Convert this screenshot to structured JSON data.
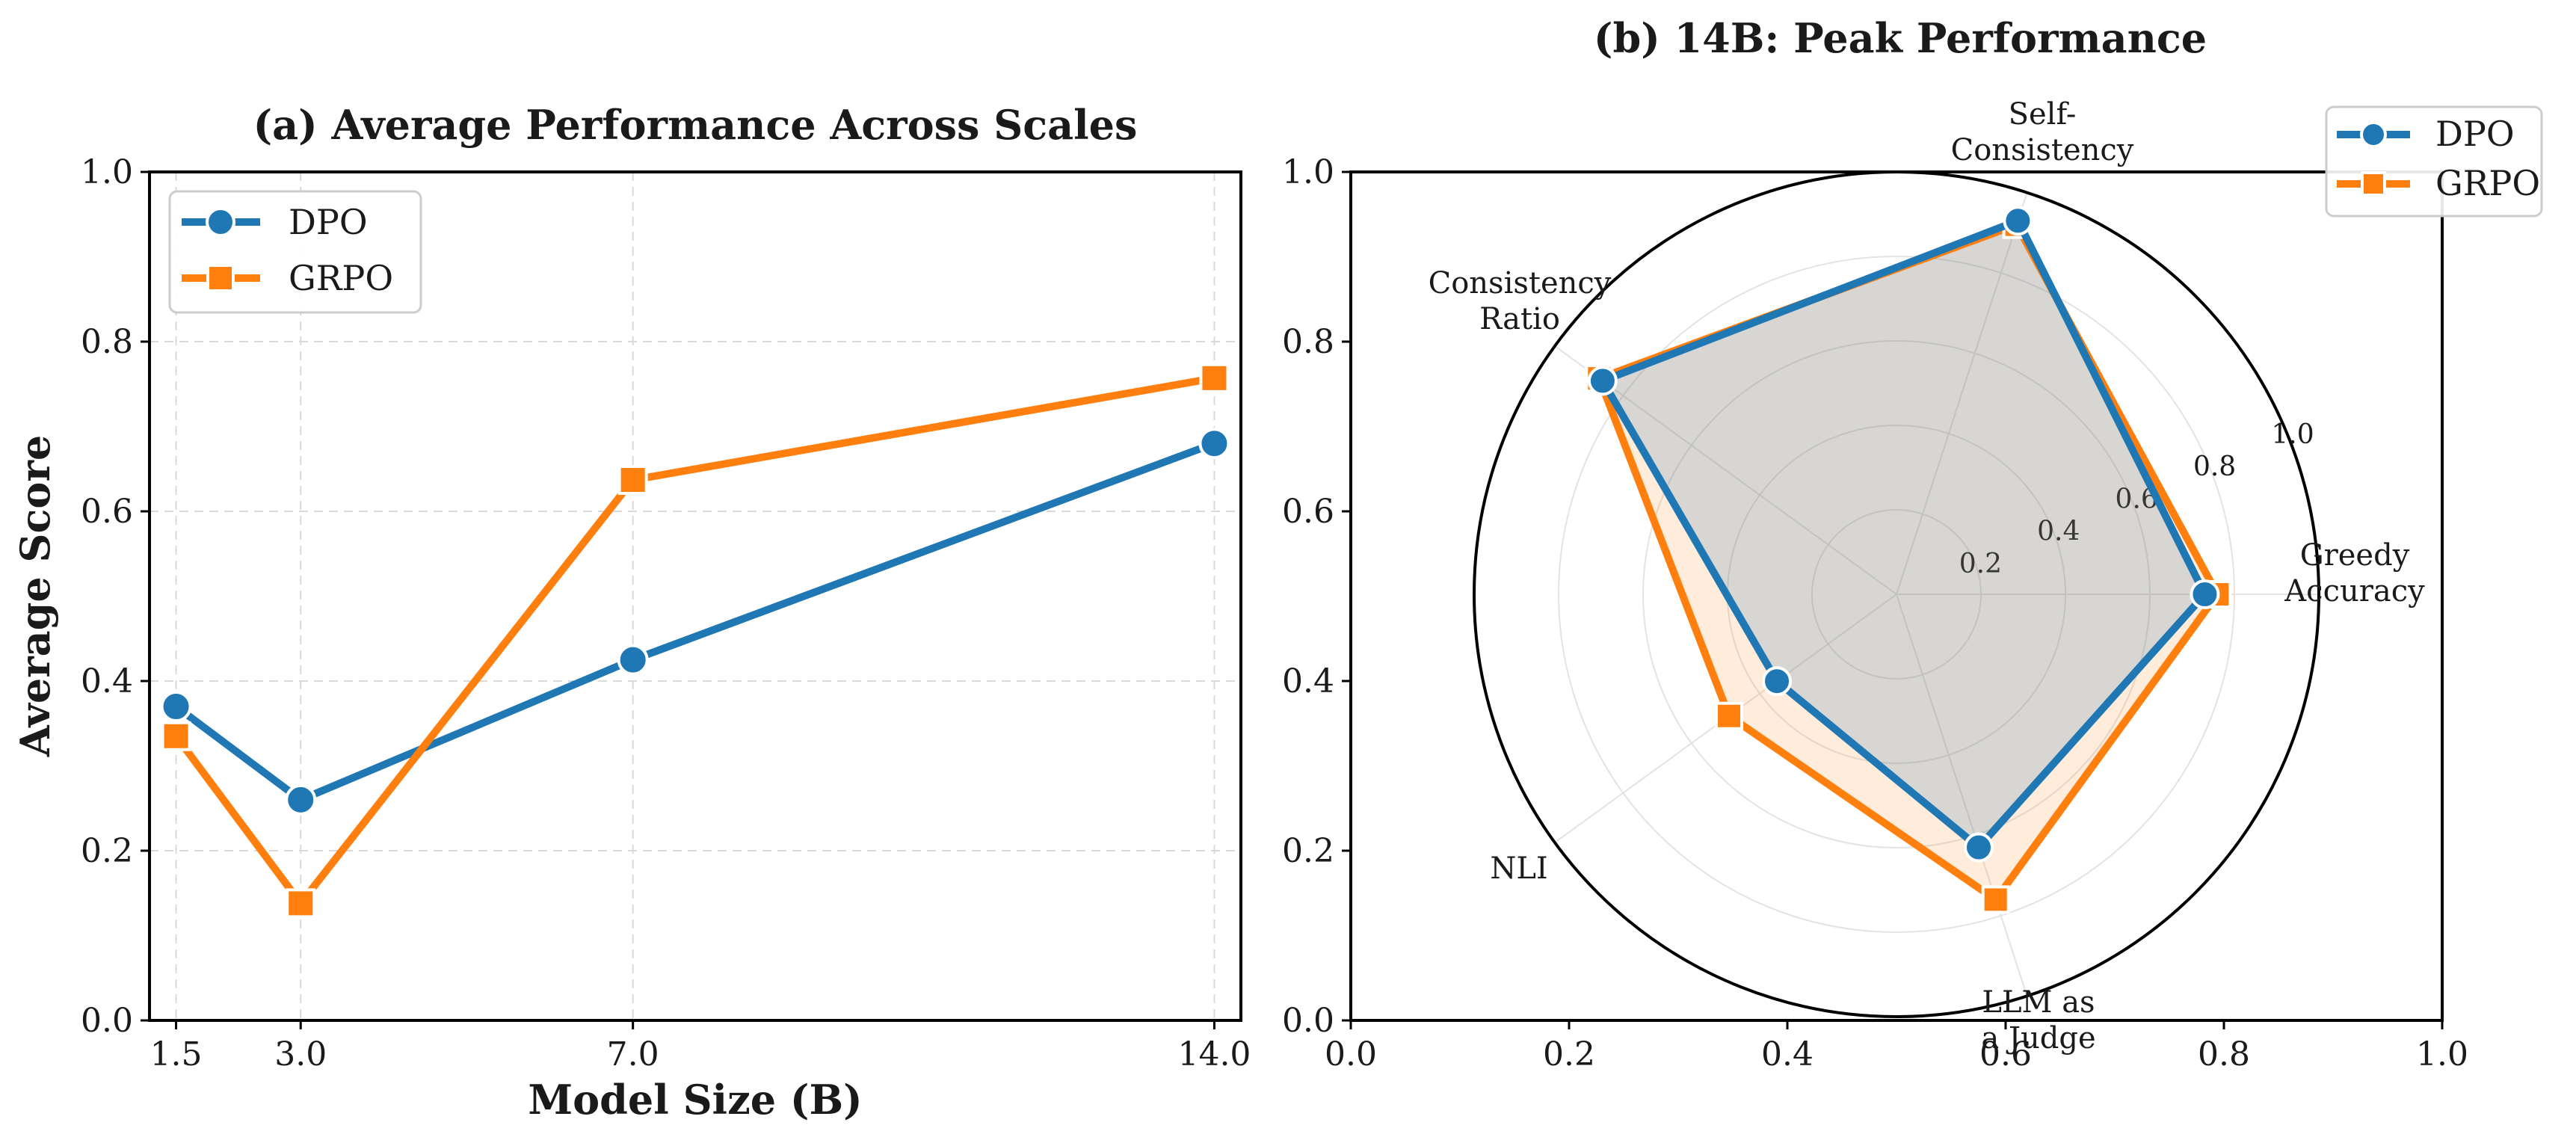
{
  "chart_data": [
    {
      "type": "line",
      "title": "(a) Average Performance Across Scales",
      "xlabel": "Model Size (B)",
      "ylabel": "Average Score",
      "x": [
        1.5,
        3.0,
        7.0,
        14.0
      ],
      "x_tick_labels": [
        "1.5",
        "3.0",
        "7.0",
        "14.0"
      ],
      "ylim": [
        0.0,
        1.0
      ],
      "y_ticks": [
        "0.0",
        "0.2",
        "0.4",
        "0.6",
        "0.8",
        "1.0"
      ],
      "grid": true,
      "legend": "upper-left",
      "series": [
        {
          "name": "DPO",
          "color": "#1f77b4",
          "marker": "circle",
          "values": [
            0.37,
            0.26,
            0.425,
            0.68
          ]
        },
        {
          "name": "GRPO",
          "color": "#ff7f0e",
          "marker": "square",
          "values": [
            0.335,
            0.138,
            0.637,
            0.757
          ]
        }
      ]
    },
    {
      "type": "radar",
      "title": "(b) 14B: Peak Performance",
      "axes": [
        "Greedy\nAccuracy",
        "Self-\nConsistency",
        "Consistency\nRatio",
        "NLI",
        "LLM as\na Judge"
      ],
      "radial_ticks": [
        "0.2",
        "0.4",
        "0.6",
        "0.8",
        "1.0"
      ],
      "rlim": [
        0.0,
        1.0
      ],
      "frame_x_ticks": [
        "0.0",
        "0.2",
        "0.4",
        "0.6",
        "0.8",
        "1.0"
      ],
      "frame_y_ticks": [
        "0.0",
        "0.2",
        "0.4",
        "0.6",
        "0.8",
        "1.0"
      ],
      "legend": "top-right",
      "series": [
        {
          "name": "DPO",
          "color": "#1f77b4",
          "marker": "circle",
          "values": [
            0.73,
            0.93,
            0.86,
            0.35,
            0.63
          ]
        },
        {
          "name": "GRPO",
          "color": "#ff7f0e",
          "marker": "square",
          "values": [
            0.76,
            0.92,
            0.87,
            0.49,
            0.76
          ]
        }
      ]
    }
  ]
}
